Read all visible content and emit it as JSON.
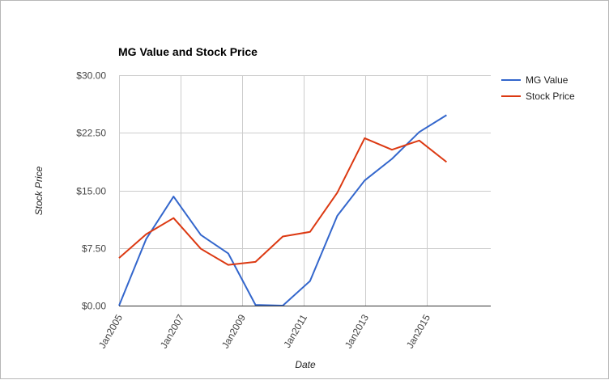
{
  "chart_data": {
    "type": "line",
    "title": "MG Value and Stock Price",
    "xlabel": "Date",
    "ylabel": "Stock Price",
    "x": [
      "2005-01-01",
      "2005-11-20",
      "2006-10-10",
      "2007-08-30",
      "2008-07-20",
      "2009-06-09",
      "2010-04-29",
      "2011-03-19",
      "2012-02-06",
      "2012-12-27",
      "2013-11-16",
      "2014-10-06",
      "2015-08-26",
      "2016-07-15"
    ],
    "x_ticks": [
      "Jan2005",
      "Jan2007",
      "Jan2009",
      "Jan2011",
      "Jan2013",
      "Jan2015"
    ],
    "x_tick_dates": [
      "2005-01-01",
      "2007-01-01",
      "2009-01-01",
      "2011-01-01",
      "2013-01-01",
      "2015-01-01"
    ],
    "xlim": [
      "2005-01-01",
      "2017-02-01"
    ],
    "ylim": [
      0,
      30
    ],
    "y_ticks": [
      "$0.00",
      "$7.50",
      "$15.00",
      "$22.50",
      "$30.00"
    ],
    "y_tick_values": [
      0,
      7.5,
      15,
      22.5,
      30
    ],
    "grid": true,
    "legend_position": "right",
    "series": [
      {
        "name": "MG Value",
        "color": "#3366cc",
        "values": [
          0,
          8.7,
          14.2,
          9.2,
          6.8,
          0.1,
          0,
          3.2,
          11.7,
          16.3,
          19.1,
          22.6,
          24.8,
          null
        ]
      },
      {
        "name": "Stock Price",
        "color": "#dc3912",
        "values": [
          6.2,
          9.3,
          11.4,
          7.4,
          5.3,
          5.7,
          9.0,
          9.6,
          14.7,
          21.8,
          20.3,
          21.5,
          18.7,
          null
        ]
      }
    ]
  }
}
